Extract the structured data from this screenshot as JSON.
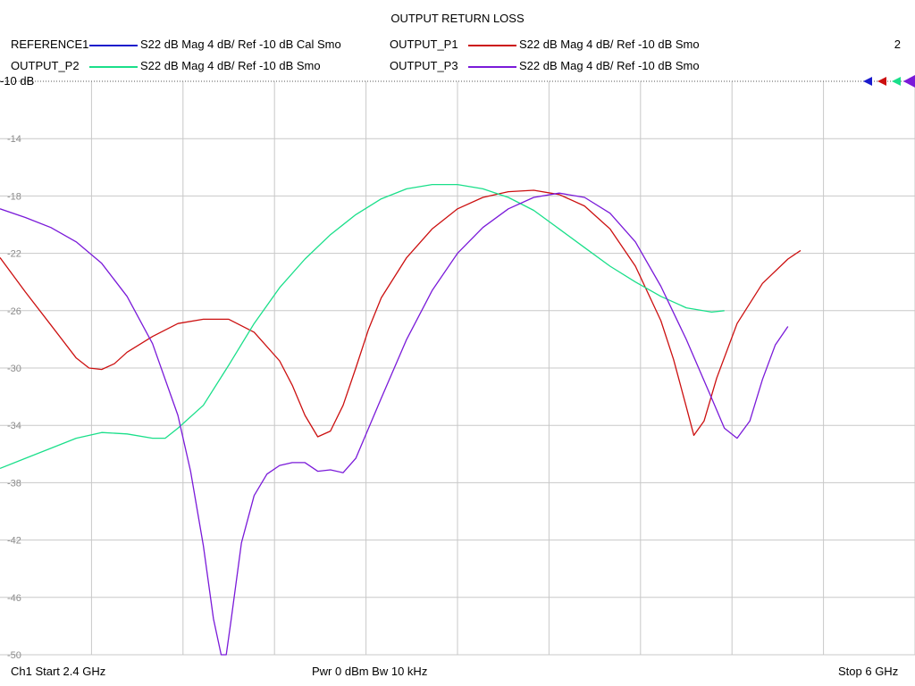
{
  "chart_data": {
    "type": "line",
    "title": "OUTPUT RETURN LOSS",
    "ref_label": "-10 dB",
    "y_ticks": [
      -10,
      -14,
      -18,
      -22,
      -26,
      -30,
      -34,
      -38,
      -42,
      -46,
      -50
    ],
    "ylim": [
      -50,
      -10
    ],
    "xlim": [
      2.4,
      6.0
    ],
    "x_unit": "GHz",
    "grid": true,
    "channel_number": "2",
    "legend": [
      {
        "name": "REFERENCE1",
        "desc": "S22  dB Mag  4 dB/ Ref -10 dB  Cal Smo",
        "color": "#1a1acc"
      },
      {
        "name": "OUTPUT_P1",
        "desc": "S22  dB Mag  4 dB/ Ref -10 dB  Smo",
        "color": "#cc1010"
      },
      {
        "name": "OUTPUT_P2",
        "desc": "S22  dB Mag  4 dB/ Ref -10 dB  Smo",
        "color": "#1adf8a"
      },
      {
        "name": "OUTPUT_P3",
        "desc": "S22  dB Mag  4 dB/ Ref -10 dB  Smo",
        "color": "#7a1ad9"
      }
    ],
    "series": [
      {
        "name": "OUTPUT_P1",
        "color": "#cc1010",
        "points": [
          [
            2.4,
            -22.3
          ],
          [
            2.5,
            -24.7
          ],
          [
            2.6,
            -27.0
          ],
          [
            2.7,
            -29.3
          ],
          [
            2.75,
            -30.0
          ],
          [
            2.8,
            -30.1
          ],
          [
            2.85,
            -29.7
          ],
          [
            2.9,
            -28.9
          ],
          [
            3.0,
            -27.8
          ],
          [
            3.1,
            -26.9
          ],
          [
            3.2,
            -26.6
          ],
          [
            3.3,
            -26.6
          ],
          [
            3.4,
            -27.5
          ],
          [
            3.5,
            -29.5
          ],
          [
            3.55,
            -31.2
          ],
          [
            3.6,
            -33.3
          ],
          [
            3.65,
            -34.8
          ],
          [
            3.7,
            -34.4
          ],
          [
            3.75,
            -32.6
          ],
          [
            3.8,
            -30.0
          ],
          [
            3.85,
            -27.3
          ],
          [
            3.9,
            -25.1
          ],
          [
            4.0,
            -22.3
          ],
          [
            4.1,
            -20.3
          ],
          [
            4.2,
            -18.9
          ],
          [
            4.3,
            -18.1
          ],
          [
            4.4,
            -17.7
          ],
          [
            4.5,
            -17.6
          ],
          [
            4.6,
            -17.9
          ],
          [
            4.7,
            -18.7
          ],
          [
            4.8,
            -20.3
          ],
          [
            4.9,
            -22.9
          ],
          [
            5.0,
            -26.7
          ],
          [
            5.05,
            -29.4
          ],
          [
            5.1,
            -32.7
          ],
          [
            5.13,
            -34.7
          ],
          [
            5.17,
            -33.7
          ],
          [
            5.22,
            -30.7
          ],
          [
            5.3,
            -26.9
          ],
          [
            5.4,
            -24.1
          ],
          [
            5.5,
            -22.4
          ],
          [
            5.55,
            -21.8
          ]
        ]
      },
      {
        "name": "OUTPUT_P2",
        "color": "#1adf8a",
        "points": [
          [
            2.4,
            -37.0
          ],
          [
            2.5,
            -36.3
          ],
          [
            2.6,
            -35.6
          ],
          [
            2.7,
            -34.9
          ],
          [
            2.8,
            -34.5
          ],
          [
            2.9,
            -34.6
          ],
          [
            3.0,
            -34.9
          ],
          [
            3.05,
            -34.9
          ],
          [
            3.1,
            -34.2
          ],
          [
            3.2,
            -32.6
          ],
          [
            3.3,
            -29.8
          ],
          [
            3.4,
            -26.9
          ],
          [
            3.5,
            -24.4
          ],
          [
            3.6,
            -22.4
          ],
          [
            3.7,
            -20.7
          ],
          [
            3.8,
            -19.3
          ],
          [
            3.9,
            -18.2
          ],
          [
            4.0,
            -17.5
          ],
          [
            4.1,
            -17.2
          ],
          [
            4.2,
            -17.2
          ],
          [
            4.3,
            -17.5
          ],
          [
            4.4,
            -18.1
          ],
          [
            4.5,
            -19.0
          ],
          [
            4.6,
            -20.3
          ],
          [
            4.7,
            -21.6
          ],
          [
            4.8,
            -22.9
          ],
          [
            4.9,
            -24.0
          ],
          [
            5.0,
            -25.0
          ],
          [
            5.1,
            -25.8
          ],
          [
            5.2,
            -26.1
          ],
          [
            5.25,
            -26.0
          ]
        ]
      },
      {
        "name": "OUTPUT_P3",
        "color": "#7a1ad9",
        "points": [
          [
            2.4,
            -18.9
          ],
          [
            2.5,
            -19.5
          ],
          [
            2.6,
            -20.2
          ],
          [
            2.7,
            -21.2
          ],
          [
            2.8,
            -22.7
          ],
          [
            2.9,
            -25.0
          ],
          [
            3.0,
            -28.3
          ],
          [
            3.1,
            -33.3
          ],
          [
            3.15,
            -37.2
          ],
          [
            3.2,
            -42.4
          ],
          [
            3.24,
            -47.5
          ],
          [
            3.27,
            -50.0
          ],
          [
            3.29,
            -50.0
          ],
          [
            3.31,
            -47.5
          ],
          [
            3.35,
            -42.2
          ],
          [
            3.4,
            -38.9
          ],
          [
            3.45,
            -37.4
          ],
          [
            3.5,
            -36.8
          ],
          [
            3.55,
            -36.6
          ],
          [
            3.6,
            -36.6
          ],
          [
            3.65,
            -37.2
          ],
          [
            3.7,
            -37.1
          ],
          [
            3.75,
            -37.3
          ],
          [
            3.8,
            -36.3
          ],
          [
            3.9,
            -32.1
          ],
          [
            4.0,
            -28.0
          ],
          [
            4.1,
            -24.6
          ],
          [
            4.2,
            -22.0
          ],
          [
            4.3,
            -20.2
          ],
          [
            4.4,
            -18.9
          ],
          [
            4.5,
            -18.1
          ],
          [
            4.6,
            -17.8
          ],
          [
            4.7,
            -18.1
          ],
          [
            4.8,
            -19.2
          ],
          [
            4.9,
            -21.2
          ],
          [
            5.0,
            -24.3
          ],
          [
            5.1,
            -28.0
          ],
          [
            5.2,
            -32.1
          ],
          [
            5.25,
            -34.2
          ],
          [
            5.3,
            -34.9
          ],
          [
            5.35,
            -33.7
          ],
          [
            5.4,
            -30.8
          ],
          [
            5.45,
            -28.4
          ],
          [
            5.5,
            -27.1
          ]
        ]
      }
    ]
  },
  "footer": {
    "start": "Ch1  Start  2.4 GHz",
    "mid": "Pwr  0 dBm  Bw  10 kHz",
    "stop": "Stop  6 GHz"
  }
}
